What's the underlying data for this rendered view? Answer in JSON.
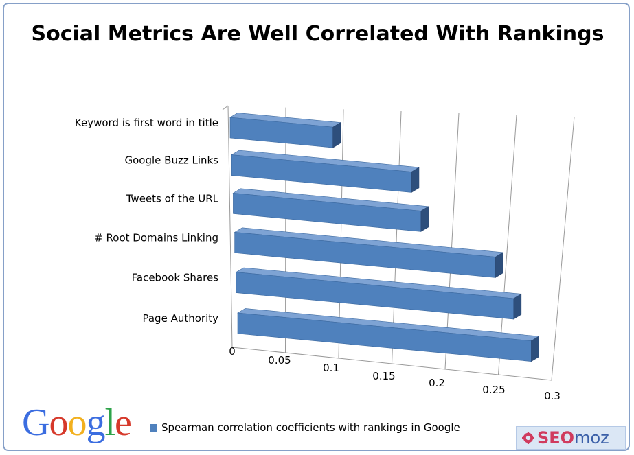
{
  "chart_data": {
    "type": "bar",
    "orientation": "horizontal",
    "title": "Social Metrics Are Well Correlated With Rankings",
    "categories": [
      "Keyword is first word in title",
      "Google Buzz Links",
      "Tweets of the URL",
      "# Root Domains Linking",
      "Facebook Shares",
      "Page Authority"
    ],
    "series": [
      {
        "name": "Spearman correlation coefficients with rankings in Google",
        "values": [
          0.09,
          0.16,
          0.17,
          0.24,
          0.26,
          0.28
        ]
      }
    ],
    "xlim": [
      0,
      0.3
    ],
    "xticks": [
      "0",
      "0.05",
      "0.1",
      "0.15",
      "0.2",
      "0.25",
      "0.3"
    ],
    "grid": true,
    "legend_position": "bottom",
    "colors": {
      "bar": "#4f81bd",
      "bar_top": "#7ea3d4",
      "bar_side": "#2e4f7c",
      "grid": "#999999"
    }
  },
  "branding": {
    "google_letters": [
      {
        "char": "G",
        "color": "#3b6de0"
      },
      {
        "char": "o",
        "color": "#d6392b"
      },
      {
        "char": "o",
        "color": "#f2b01e"
      },
      {
        "char": "g",
        "color": "#3b6de0"
      },
      {
        "char": "l",
        "color": "#2ea34a"
      },
      {
        "char": "e",
        "color": "#d6392b"
      }
    ],
    "seomoz_seo": "SEO",
    "seomoz_moz": "moz"
  }
}
